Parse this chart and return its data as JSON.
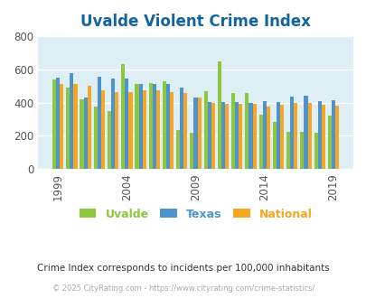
{
  "title": "Uvalde Violent Crime Index",
  "title_color": "#1464a0",
  "years": [
    1999,
    2000,
    2001,
    2002,
    2003,
    2004,
    2005,
    2006,
    2007,
    2008,
    2009,
    2010,
    2011,
    2012,
    2013,
    2014,
    2015,
    2016,
    2017,
    2018,
    2019
  ],
  "uvalde": [
    540,
    490,
    420,
    375,
    350,
    630,
    510,
    520,
    530,
    235,
    215,
    470,
    650,
    460,
    460,
    325,
    285,
    225,
    225,
    220,
    320
  ],
  "texas": [
    550,
    575,
    430,
    555,
    545,
    545,
    510,
    510,
    510,
    490,
    430,
    405,
    405,
    405,
    400,
    410,
    405,
    435,
    440,
    410,
    415
  ],
  "national": [
    510,
    510,
    500,
    475,
    465,
    465,
    475,
    475,
    465,
    455,
    430,
    400,
    390,
    390,
    390,
    375,
    385,
    395,
    395,
    385,
    380
  ],
  "uvalde_color": "#8dc63f",
  "texas_color": "#4f93ce",
  "national_color": "#f5a623",
  "bg_color": "#ddeef5",
  "ylim": [
    0,
    800
  ],
  "yticks": [
    0,
    200,
    400,
    600,
    800
  ],
  "xtick_years": [
    1999,
    2004,
    2009,
    2014,
    2019
  ],
  "legend_labels": [
    "Uvalde",
    "Texas",
    "National"
  ],
  "legend_colors": [
    "#8dc63f",
    "#4f93ce",
    "#f5a623"
  ],
  "subtitle": "Crime Index corresponds to incidents per 100,000 inhabitants",
  "subtitle_color": "#333333",
  "footer": "© 2025 CityRating.com - https://www.cityrating.com/crime-statistics/",
  "footer_color": "#aaaaaa",
  "grid_color": "#ffffff",
  "bar_width": 0.27
}
